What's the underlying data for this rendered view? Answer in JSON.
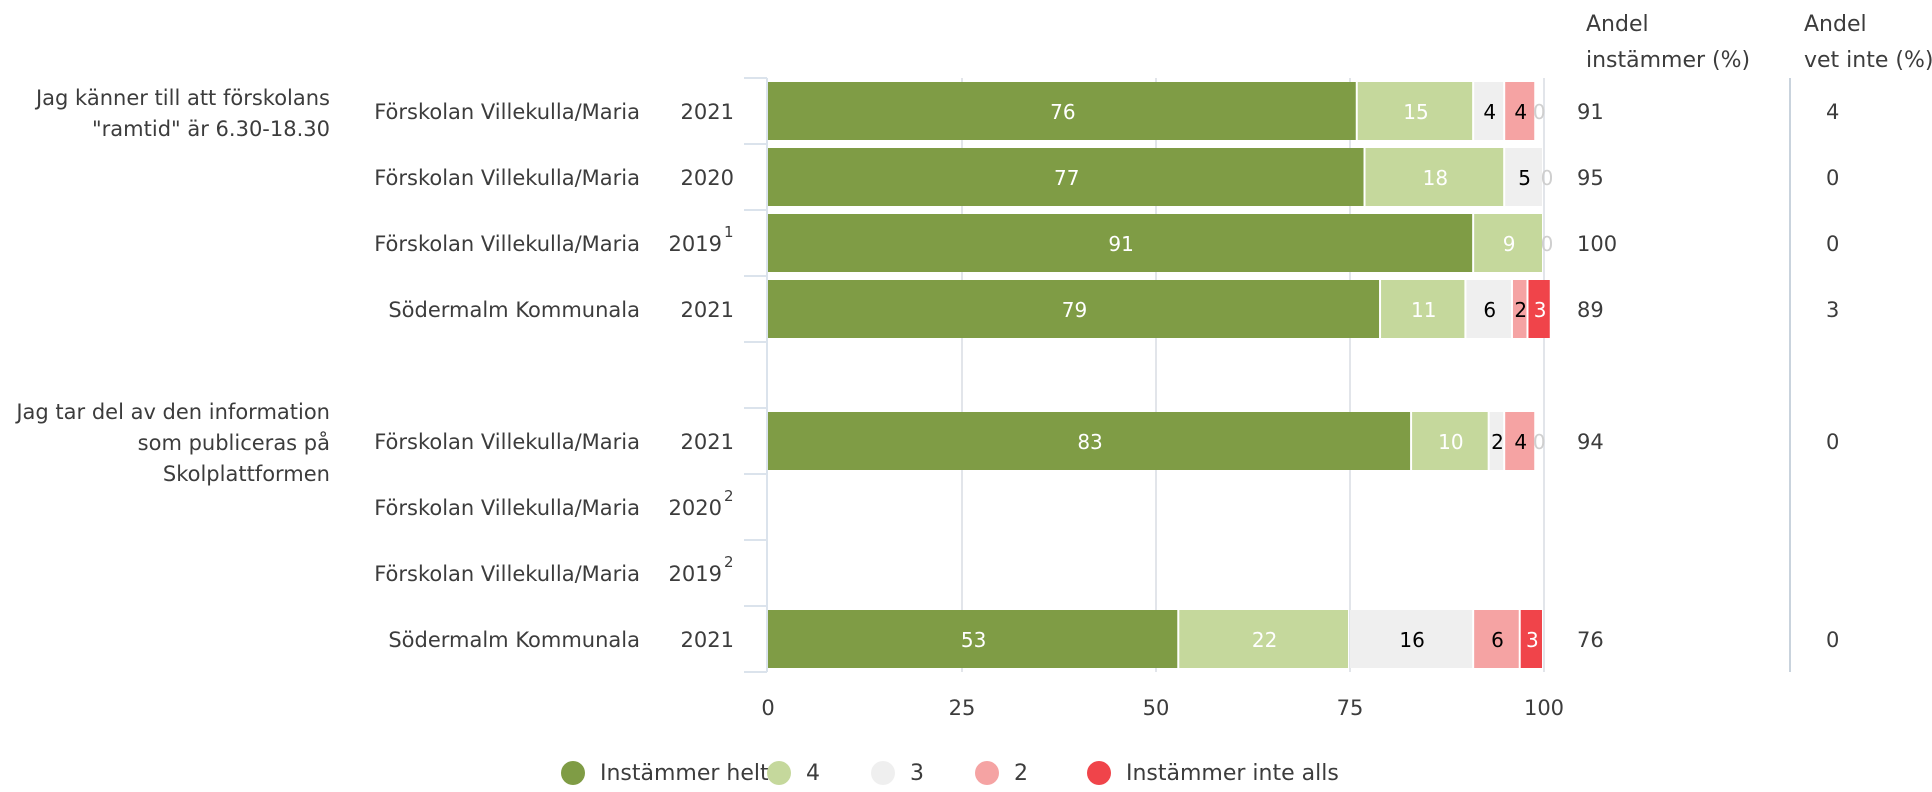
{
  "chart_data": {
    "type": "bar",
    "stacked": true,
    "orientation": "horizontal",
    "xlim": [
      0,
      100
    ],
    "x_ticks": [
      0,
      25,
      50,
      75,
      100
    ],
    "grid": true,
    "legend_position": "bottom-center",
    "header_agree": [
      "Andel",
      "instämmer (%)"
    ],
    "header_dontknow": [
      "Andel",
      "vet inte (%)"
    ],
    "segments": [
      {
        "name": "Instämmer helt",
        "color": "#7f9c45",
        "text_color": "#ffffff"
      },
      {
        "name": "4",
        "color": "#c5d89c",
        "text_color": "#ffffff"
      },
      {
        "name": "3",
        "color": "#efefef",
        "text_color": "#000000"
      },
      {
        "name": "2",
        "color": "#f5a3a3",
        "text_color": "#000000"
      },
      {
        "name": "Instämmer inte alls",
        "color": "#f0444a",
        "text_color": "#ffffff"
      }
    ],
    "groups": [
      {
        "question": [
          "Jag känner till att förskolans",
          "\"ramtid\" är 6.30-18.30"
        ],
        "rows": [
          {
            "unit": "Förskolan Villekulla/Maria",
            "year": "2021",
            "footnote": "",
            "values": [
              76,
              15,
              4,
              4,
              0
            ],
            "agree": "91",
            "dont_know": "4"
          },
          {
            "unit": "Förskolan Villekulla/Maria",
            "year": "2020",
            "footnote": "",
            "values": [
              77,
              18,
              5,
              0,
              null
            ],
            "agree": "95",
            "dont_know": "0"
          },
          {
            "unit": "Förskolan Villekulla/Maria",
            "year": "2019",
            "footnote": "1",
            "values": [
              91,
              9,
              0,
              null,
              null
            ],
            "agree": "100",
            "dont_know": "0"
          },
          {
            "unit": "Södermalm Kommunala",
            "year": "2021",
            "footnote": "",
            "values": [
              79,
              11,
              6,
              2,
              3
            ],
            "agree": "89",
            "dont_know": "3"
          }
        ]
      },
      {
        "question": [
          "Jag tar del av den information",
          "som publiceras på",
          "Skolplattformen"
        ],
        "rows": [
          {
            "unit": "Förskolan Villekulla/Maria",
            "year": "2021",
            "footnote": "",
            "values": [
              83,
              10,
              2,
              4,
              0
            ],
            "agree": "94",
            "dont_know": "0"
          },
          {
            "unit": "Förskolan Villekulla/Maria",
            "year": "2020",
            "footnote": "2",
            "values": null,
            "agree": "",
            "dont_know": ""
          },
          {
            "unit": "Förskolan Villekulla/Maria",
            "year": "2019",
            "footnote": "2",
            "values": null,
            "agree": "",
            "dont_know": ""
          },
          {
            "unit": "Södermalm Kommunala",
            "year": "2021",
            "footnote": "",
            "values": [
              53,
              22,
              16,
              6,
              3
            ],
            "agree": "76",
            "dont_know": "0"
          }
        ]
      }
    ]
  }
}
